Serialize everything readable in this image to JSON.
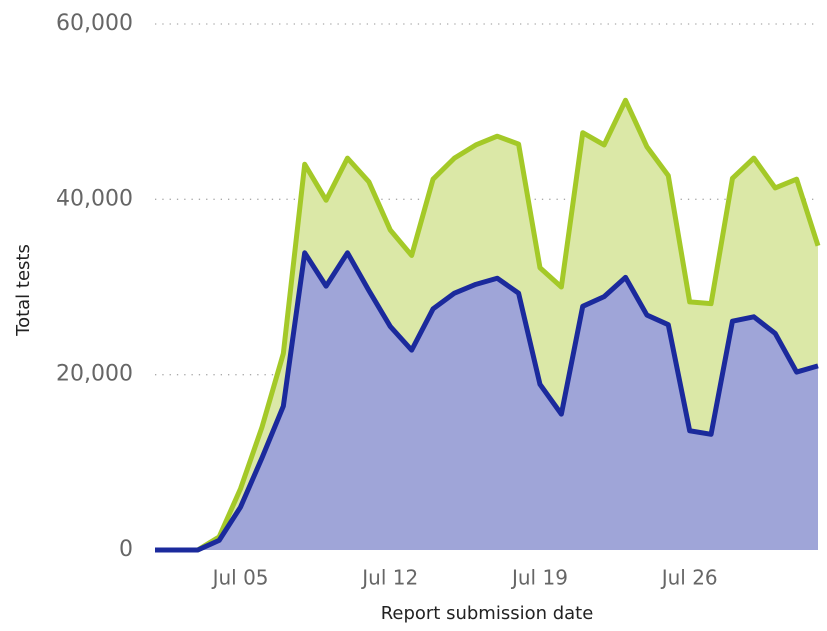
{
  "chart_data": {
    "type": "area",
    "x": [
      "Jul 01",
      "Jul 02",
      "Jul 03",
      "Jul 04",
      "Jul 05",
      "Jul 06",
      "Jul 07",
      "Jul 08",
      "Jul 09",
      "Jul 10",
      "Jul 11",
      "Jul 12",
      "Jul 13",
      "Jul 14",
      "Jul 15",
      "Jul 16",
      "Jul 17",
      "Jul 18",
      "Jul 19",
      "Jul 20",
      "Jul 21",
      "Jul 22",
      "Jul 23",
      "Jul 24",
      "Jul 25",
      "Jul 26",
      "Jul 27",
      "Jul 28",
      "Jul 29",
      "Jul 30",
      "Jul 31",
      "Aug 01"
    ],
    "xticks": [
      "Jul 05",
      "Jul 12",
      "Jul 19",
      "Jul 26"
    ],
    "series": [
      {
        "color": "#a4c928",
        "fill": "#dbe8a7",
        "values": [
          0,
          0,
          0,
          1500,
          7000,
          14000,
          22400,
          44000,
          39900,
          44700,
          42000,
          36500,
          33600,
          42300,
          44700,
          46200,
          47200,
          46300,
          32200,
          30000,
          47600,
          46200,
          51300,
          46000,
          42700,
          28300,
          28100,
          42400,
          44700,
          41300,
          42300,
          34700
        ]
      },
      {
        "color": "#1b2a9c",
        "fill": "#9fa5d8",
        "values": [
          0,
          0,
          0,
          1100,
          4900,
          10500,
          16400,
          33900,
          30100,
          33900,
          29600,
          25500,
          22800,
          27500,
          29300,
          30300,
          31000,
          29300,
          18900,
          15500,
          27800,
          28900,
          31100,
          26800,
          25700,
          13600,
          13200,
          26100,
          26600,
          24700,
          20300,
          21000
        ]
      }
    ],
    "xlabel": "Report submission date",
    "ylabel": "Total tests",
    "ylim": [
      0,
      60000
    ],
    "yticks": [
      0,
      {
        "value": 20000,
        "label": "20,000"
      },
      {
        "value": 40000,
        "label": "40,000"
      },
      {
        "value": 60000,
        "label": "60,000"
      }
    ],
    "grid": true
  }
}
